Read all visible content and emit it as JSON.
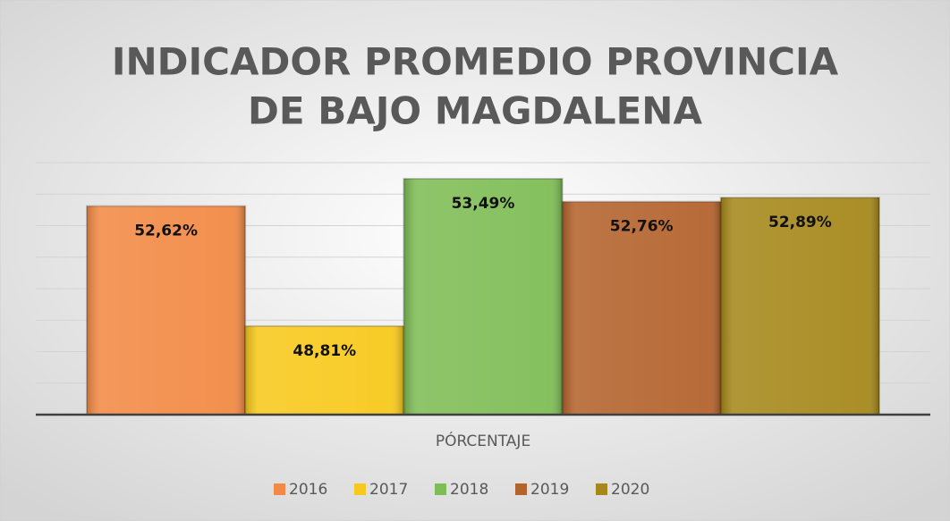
{
  "chart_data": {
    "type": "bar",
    "title": [
      "INDICADOR PROMEDIO PROVINCIA",
      "DE BAJO MAGDALENA"
    ],
    "categories": [
      "PÓRCENTAJE"
    ],
    "series": [
      {
        "name": "2016",
        "color": "#f28a45",
        "values": [
          52.62
        ],
        "value_labels": [
          "52,62%"
        ]
      },
      {
        "name": "2017",
        "color": "#f7c91c",
        "values": [
          48.81
        ],
        "value_labels": [
          "48,81%"
        ]
      },
      {
        "name": "2018",
        "color": "#7fbd56",
        "values": [
          53.49
        ],
        "value_labels": [
          "53,49%"
        ]
      },
      {
        "name": "2019",
        "color": "#b4632d",
        "values": [
          52.76
        ],
        "value_labels": [
          "52,76%"
        ]
      },
      {
        "name": "2020",
        "color": "#a6881b",
        "values": [
          52.89
        ],
        "value_labels": [
          "52,89%"
        ]
      }
    ],
    "ylim": [
      46,
      54
    ],
    "yticks": [
      46,
      47,
      48,
      49,
      50,
      51,
      52,
      53,
      54
    ],
    "grid": true,
    "legend": "bottom"
  }
}
